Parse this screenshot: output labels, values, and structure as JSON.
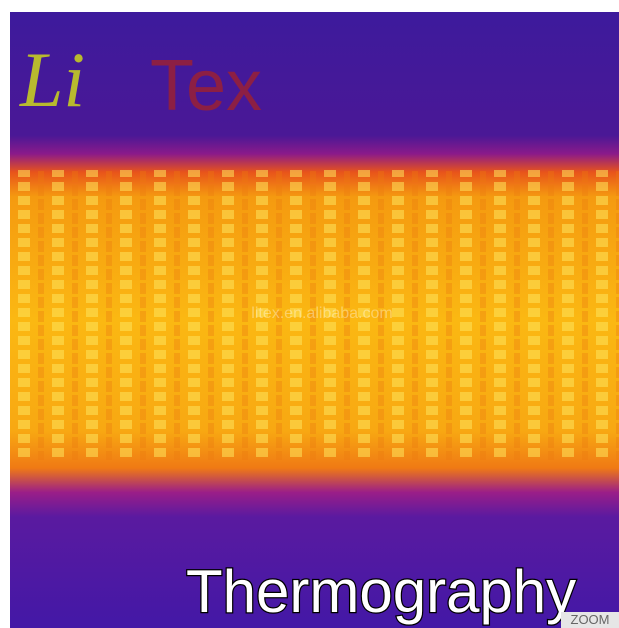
{
  "logo": {
    "script": "Li",
    "text": "Tex"
  },
  "watermark": "litex.en.alibaba.com",
  "caption": "Thermography",
  "zoom_button": "ZOOM"
}
